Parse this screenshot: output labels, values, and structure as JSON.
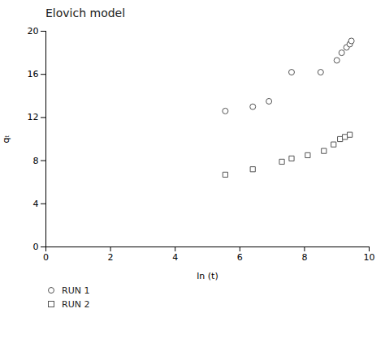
{
  "chart_data": {
    "type": "scatter",
    "title": "Elovich model",
    "xlabel": "ln (t)",
    "ylabel": "qₜ",
    "xlim": [
      0,
      10
    ],
    "ylim": [
      0,
      20
    ],
    "xticks": [
      0,
      2,
      4,
      6,
      8,
      10
    ],
    "yticks": [
      0,
      4,
      8,
      12,
      16,
      20
    ],
    "grid": false,
    "legend": "bottom",
    "series": [
      {
        "name": "RUN 1",
        "color": "#555555",
        "marker": "circle",
        "x": [
          5.55,
          6.4,
          6.9,
          7.6,
          8.5,
          9.0,
          9.15,
          9.3,
          9.4,
          9.45
        ],
        "values": [
          12.6,
          13.0,
          13.5,
          16.2,
          16.2,
          17.3,
          18.0,
          18.5,
          18.8,
          19.1
        ]
      },
      {
        "name": "RUN 2",
        "color": "#555555",
        "marker": "square",
        "x": [
          5.55,
          6.4,
          7.3,
          7.6,
          8.1,
          8.6,
          8.9,
          9.1,
          9.25,
          9.4
        ],
        "values": [
          6.7,
          7.2,
          7.9,
          8.2,
          8.5,
          8.9,
          9.5,
          10.0,
          10.2,
          10.4
        ]
      }
    ]
  }
}
